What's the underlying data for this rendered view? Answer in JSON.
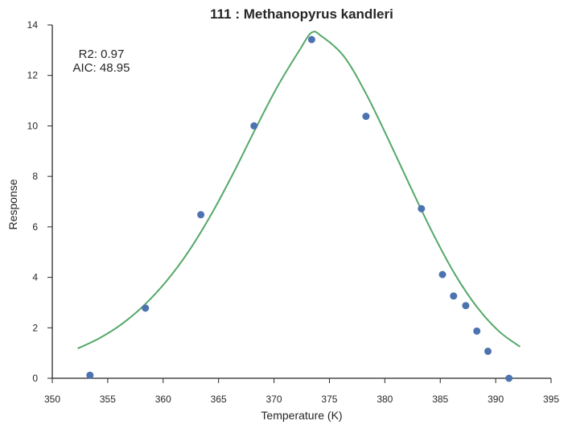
{
  "chart_data": {
    "type": "scatter",
    "title": "111 : Methanopyrus kandleri",
    "xlabel": "Temperature (K)",
    "ylabel": "Response",
    "xlim": [
      350,
      395
    ],
    "ylim": [
      0,
      14
    ],
    "xticks": [
      350,
      355,
      360,
      365,
      370,
      375,
      380,
      385,
      390,
      395
    ],
    "yticks": [
      0,
      2,
      4,
      6,
      8,
      10,
      12,
      14
    ],
    "grid": false,
    "annotations": [
      "R2: 0.97",
      "AIC: 48.95"
    ],
    "series": [
      {
        "kind": "points",
        "color": "#4c72b0",
        "x": [
          353.4,
          358.4,
          363.4,
          368.2,
          373.4,
          378.3,
          383.3,
          385.2,
          386.2,
          387.3,
          388.3,
          389.3,
          391.2
        ],
        "y": [
          0.12,
          2.78,
          6.48,
          10.0,
          13.42,
          10.38,
          6.72,
          4.11,
          3.26,
          2.88,
          1.87,
          1.07,
          0.0
        ]
      },
      {
        "kind": "fit-line",
        "color": "#55a868",
        "x": [
          352.3,
          354.3,
          356.3,
          358.3,
          360.3,
          362.3,
          364.3,
          366.3,
          368.3,
          370.3,
          372.3,
          373.4,
          374.3,
          376.3,
          378.3,
          380.3,
          382.3,
          384.3,
          386.3,
          388.3,
          390.3,
          392.2
        ],
        "y": [
          1.18,
          1.6,
          2.16,
          2.9,
          3.85,
          5.03,
          6.46,
          8.1,
          9.86,
          11.55,
          13.0,
          13.7,
          13.55,
          12.76,
          11.28,
          9.48,
          7.6,
          5.77,
          4.14,
          2.83,
          1.86,
          1.25
        ]
      }
    ]
  }
}
